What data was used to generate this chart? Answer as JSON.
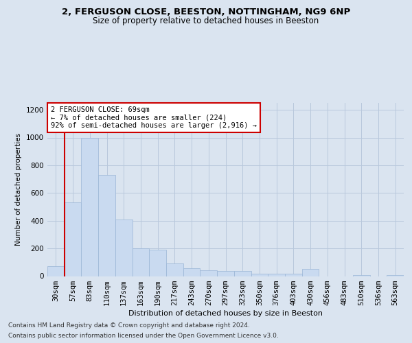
{
  "title1": "2, FERGUSON CLOSE, BEESTON, NOTTINGHAM, NG9 6NP",
  "title2": "Size of property relative to detached houses in Beeston",
  "xlabel": "Distribution of detached houses by size in Beeston",
  "ylabel": "Number of detached properties",
  "footer1": "Contains HM Land Registry data © Crown copyright and database right 2024.",
  "footer2": "Contains public sector information licensed under the Open Government Licence v3.0.",
  "annotation_line1": "2 FERGUSON CLOSE: 69sqm",
  "annotation_line2": "← 7% of detached houses are smaller (224)",
  "annotation_line3": "92% of semi-detached houses are larger (2,916) →",
  "bar_values": [
    70,
    530,
    1000,
    730,
    410,
    200,
    190,
    90,
    55,
    40,
    35,
    38,
    18,
    15,
    15,
    50,
    0,
    0,
    8,
    0,
    8
  ],
  "bin_labels": [
    "30sqm",
    "57sqm",
    "83sqm",
    "110sqm",
    "137sqm",
    "163sqm",
    "190sqm",
    "217sqm",
    "243sqm",
    "270sqm",
    "297sqm",
    "323sqm",
    "350sqm",
    "376sqm",
    "403sqm",
    "430sqm",
    "456sqm",
    "483sqm",
    "510sqm",
    "536sqm",
    "563sqm"
  ],
  "bar_color": "#c9daf0",
  "bar_edge_color": "#9ab5d5",
  "vline_color": "#cc0000",
  "vline_x_index": 1,
  "annotation_box_edge_color": "#cc0000",
  "grid_color": "#b8c8dc",
  "background_color": "#dae4f0",
  "ylim": [
    0,
    1250
  ],
  "yticks": [
    0,
    200,
    400,
    600,
    800,
    1000,
    1200
  ],
  "title1_fontsize": 9.5,
  "title2_fontsize": 8.5,
  "ylabel_fontsize": 7.5,
  "xlabel_fontsize": 8.0,
  "tick_fontsize": 7.5,
  "ann_fontsize": 7.5,
  "footer_fontsize": 6.5
}
